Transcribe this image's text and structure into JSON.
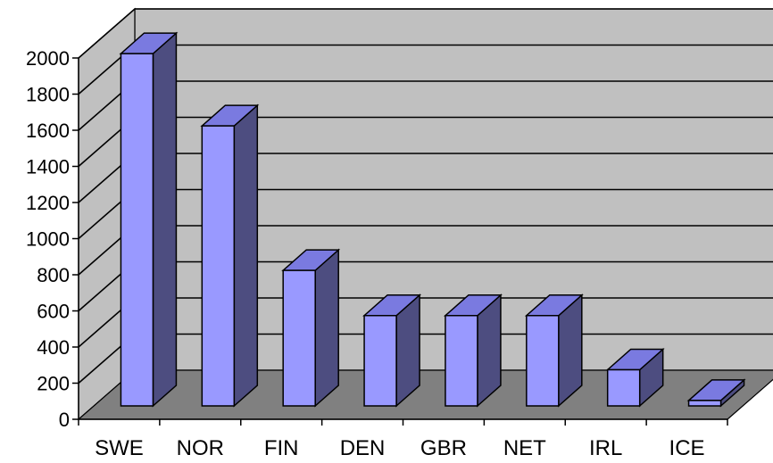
{
  "chart_data": {
    "type": "bar",
    "style": "3d-column",
    "categories": [
      "SWE",
      "NOR",
      "FIN",
      "DEN",
      "GBR",
      "NET",
      "IRL",
      "ICE"
    ],
    "values": [
      1950,
      1550,
      750,
      500,
      500,
      500,
      200,
      30
    ],
    "ylim": [
      0,
      2000
    ],
    "yticks": [
      0,
      200,
      400,
      600,
      800,
      1000,
      1200,
      1400,
      1600,
      1800,
      2000
    ],
    "grid": true,
    "legend": "none",
    "colors": {
      "bar_front": "#9999ff",
      "bar_side": "#4d4d80",
      "bar_top": "#7a7ae0",
      "back_wall": "#c0c0c0",
      "side_wall": "#c0c0c0",
      "floor": "#808080",
      "gridline": "#000000"
    }
  }
}
